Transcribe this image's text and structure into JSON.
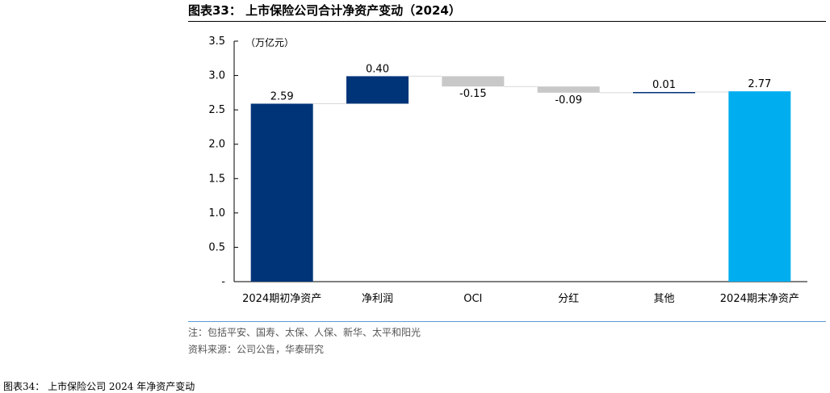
{
  "figure": {
    "title": "图表33： 上市保险公司合计净资产变动（2024）",
    "note": "注：包括平安、国寿、太保、人保、新华、太平和阳光",
    "source": "资料来源：公司公告，华泰研究",
    "next_title": "图表34： 上市保险公司 2024 年净资产变动"
  },
  "chart_data": {
    "type": "bar",
    "subtype": "waterfall",
    "unit_label": "（万亿元）",
    "categories": [
      "2024期初净资产",
      "净利润",
      "OCI",
      "分红",
      "其他",
      "2024期末净资产"
    ],
    "values": [
      2.59,
      0.4,
      -0.15,
      -0.09,
      0.01,
      2.77
    ],
    "data_labels": [
      "2.59",
      "0.40",
      "-0.15",
      "-0.09",
      "0.01",
      "2.77"
    ],
    "kinds": [
      "total",
      "delta",
      "delta",
      "delta",
      "delta",
      "total"
    ],
    "ylim": [
      0,
      3.5
    ],
    "yticks": [
      0,
      0.5,
      1.0,
      1.5,
      2.0,
      2.5,
      3.0,
      3.5
    ],
    "ytick_labels": [
      "-",
      "0.5",
      "1.0",
      "1.5",
      "2.0",
      "2.5",
      "3.0",
      "3.5"
    ],
    "colors": {
      "start_total": "#003478",
      "increase": "#003478",
      "decrease": "#c8c8c8",
      "end_total": "#00aeef",
      "connector": "#d9d9d9",
      "axis": "#000000"
    },
    "grid": false,
    "legend": "none"
  }
}
